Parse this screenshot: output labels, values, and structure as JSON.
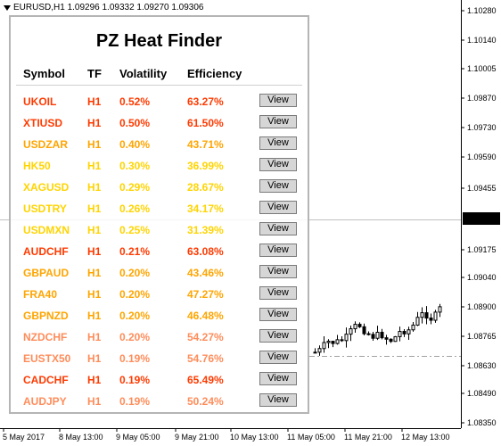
{
  "chart": {
    "title_text": "EURUSD,H1  1.09296 1.09332 1.09270 1.09306",
    "price_axis": [
      "1.10280",
      "1.10140",
      "1.10005",
      "1.09870",
      "1.09730",
      "1.09590",
      "1.09455",
      "1.09175",
      "1.09040",
      "1.08900",
      "1.08765",
      "1.08630",
      "1.08490",
      "1.08350"
    ],
    "current_price": "1.09306",
    "date_axis": [
      "5 May 2017",
      "8 May 13:00",
      "9 May 05:00",
      "9 May 21:00",
      "10 May 13:00",
      "11 May 05:00",
      "11 May 21:00",
      "12 May 13:00"
    ]
  },
  "panel": {
    "title": "PZ Heat Finder",
    "headers": {
      "symbol": "Symbol",
      "tf": "TF",
      "volatility": "Volatility",
      "efficiency": "Efficiency"
    },
    "view_label": "View",
    "rows": [
      {
        "symbol": "UKOIL",
        "tf": "H1",
        "volatility": "0.52%",
        "efficiency": "63.27%",
        "color": "#ff3a00"
      },
      {
        "symbol": "XTIUSD",
        "tf": "H1",
        "volatility": "0.50%",
        "efficiency": "61.50%",
        "color": "#ff3a00"
      },
      {
        "symbol": "USDZAR",
        "tf": "H1",
        "volatility": "0.40%",
        "efficiency": "43.71%",
        "color": "#ffa500"
      },
      {
        "symbol": "HK50",
        "tf": "H1",
        "volatility": "0.30%",
        "efficiency": "36.99%",
        "color": "#ffd400"
      },
      {
        "symbol": "XAGUSD",
        "tf": "H1",
        "volatility": "0.29%",
        "efficiency": "28.67%",
        "color": "#ffd400"
      },
      {
        "symbol": "USDTRY",
        "tf": "H1",
        "volatility": "0.26%",
        "efficiency": "34.17%",
        "color": "#ffd400"
      },
      {
        "symbol": "USDMXN",
        "tf": "H1",
        "volatility": "0.25%",
        "efficiency": "31.39%",
        "color": "#ffd400"
      },
      {
        "symbol": "AUDCHF",
        "tf": "H1",
        "volatility": "0.21%",
        "efficiency": "63.08%",
        "color": "#ff3a00"
      },
      {
        "symbol": "GBPAUD",
        "tf": "H1",
        "volatility": "0.20%",
        "efficiency": "43.46%",
        "color": "#ffa500"
      },
      {
        "symbol": "FRA40",
        "tf": "H1",
        "volatility": "0.20%",
        "efficiency": "47.27%",
        "color": "#ffa500"
      },
      {
        "symbol": "GBPNZD",
        "tf": "H1",
        "volatility": "0.20%",
        "efficiency": "46.48%",
        "color": "#ffa500"
      },
      {
        "symbol": "NZDCHF",
        "tf": "H1",
        "volatility": "0.20%",
        "efficiency": "54.27%",
        "color": "#ff8c5a"
      },
      {
        "symbol": "EUSTX50",
        "tf": "H1",
        "volatility": "0.19%",
        "efficiency": "54.76%",
        "color": "#ff8c5a"
      },
      {
        "symbol": "CADCHF",
        "tf": "H1",
        "volatility": "0.19%",
        "efficiency": "65.49%",
        "color": "#ff3a00"
      },
      {
        "symbol": "AUDJPY",
        "tf": "H1",
        "volatility": "0.19%",
        "efficiency": "50.24%",
        "color": "#ff8c5a"
      }
    ]
  }
}
